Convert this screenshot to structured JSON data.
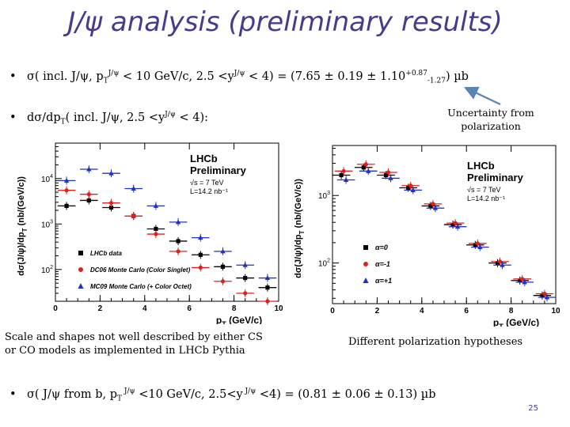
{
  "title": "J/ψ analysis (preliminary results)",
  "bullet1": {
    "main": "σ( incl. J/ψ, p",
    "sub_T": "T",
    "sup_jpsi": "J/ψ",
    "mid": " < 10 GeV/c, 2.5 <y",
    "sup_jpsi2": "J/ψ",
    "end": " < 4) = (7.65 ± 0.19 ± 1.10",
    "sup_err": "+0.87",
    "sub_err": "-1.27",
    "unit": ") µb"
  },
  "bullet2": {
    "main": "dσ/dp",
    "sub_T": "T",
    "mid": "( incl. J/ψ, 2.5 <y",
    "sup_jpsi": "J/ψ",
    "end": " < 4):"
  },
  "note_polarization": [
    "Uncertainty from",
    "polarization"
  ],
  "bullet3": {
    "main": "σ( J/ψ from b, p",
    "sub_T": "T",
    "sup1": " J/ψ",
    "mid": " <10 GeV/c, 2.5<y",
    "sup2": " J/ψ",
    "end": " <4) = (0.81 ± 0.06 ± 0.13) µb"
  },
  "caption_left": [
    "Scale and shapes not well described by either CS",
    "or CO models as implemented in LHCb Pythia"
  ],
  "caption_right": "Different polarization hypotheses",
  "page_number": "25",
  "colors": {
    "title": "#4b3a8c",
    "arrow": "#5a84b8",
    "red": "#e02020",
    "blue": "#2233bb"
  },
  "chart_data": [
    {
      "type": "scatter",
      "xlabel": "p_T (GeV/c)",
      "ylabel": "dσ(J/ψ)/dp_T (nb/(GeV/c))",
      "log_y": true,
      "xlim": [
        0,
        10
      ],
      "ylim": [
        20,
        60000
      ],
      "xticks": [
        "0",
        "2",
        "4",
        "6",
        "8",
        "10"
      ],
      "yticks": [
        {
          "v": 100,
          "label": "10^2"
        },
        {
          "v": 1000,
          "label": "10^3"
        },
        {
          "v": 10000,
          "label": "10^4"
        }
      ],
      "label_lines": [
        "LHCb",
        "Preliminary"
      ],
      "energy_label": "√s = 7 TeV",
      "lumi_label": "L=14.2 nb⁻¹",
      "series": [
        {
          "name": "LHCb data",
          "marker": "square",
          "color": "#000000",
          "x": [
            0.5,
            1.5,
            2.5,
            3.5,
            4.5,
            5.5,
            6.5,
            7.5,
            8.5,
            9.5
          ],
          "y": [
            2500,
            3300,
            2300,
            1500,
            780,
            420,
            210,
            115,
            65,
            40
          ]
        },
        {
          "name": "DC06 Monte Carlo (Color Singlet)",
          "marker": "circle",
          "color": "#e02020",
          "x": [
            0.5,
            1.5,
            2.5,
            3.5,
            4.5,
            5.5,
            6.5,
            7.5,
            8.5,
            9.5
          ],
          "y": [
            5500,
            4500,
            2900,
            1500,
            600,
            250,
            110,
            55,
            30,
            20
          ]
        },
        {
          "name": "MC09 Monte Carlo (+ Color Octet)",
          "marker": "triangle",
          "color": "#2233bb",
          "x": [
            0.5,
            1.5,
            2.5,
            3.5,
            4.5,
            5.5,
            6.5,
            7.5,
            8.5,
            9.5
          ],
          "y": [
            9000,
            16000,
            13000,
            6000,
            2500,
            1100,
            500,
            250,
            125,
            65
          ]
        }
      ]
    },
    {
      "type": "scatter",
      "xlabel": "p_T (GeV/c)",
      "ylabel": "dσ(J/ψ)/dp_T (nb/(GeV/c))",
      "log_y": true,
      "xlim": [
        0,
        10
      ],
      "ylim": [
        25,
        5500
      ],
      "xticks": [
        "0",
        "2",
        "4",
        "6",
        "8",
        "10"
      ],
      "yticks": [
        {
          "v": 100,
          "label": "10^2"
        },
        {
          "v": 1000,
          "label": "10^3"
        }
      ],
      "label_lines": [
        "LHCb",
        "Preliminary"
      ],
      "energy_label": "√s = 7 TeV",
      "lumi_label": "L=14.2 nb⁻¹",
      "series": [
        {
          "name": "α=0",
          "marker": "square",
          "color": "#000000",
          "x": [
            0.5,
            1.5,
            2.5,
            3.5,
            4.5,
            5.5,
            6.5,
            7.5,
            8.5,
            9.5
          ],
          "y": [
            2000,
            2600,
            2000,
            1300,
            700,
            370,
            185,
            100,
            55,
            33
          ]
        },
        {
          "name": "α=-1",
          "marker": "circle",
          "color": "#e02020",
          "x": [
            0.5,
            1.5,
            2.5,
            3.5,
            4.5,
            5.5,
            6.5,
            7.5,
            8.5,
            9.5
          ],
          "y": [
            2300,
            2900,
            2200,
            1400,
            750,
            390,
            195,
            105,
            58,
            35
          ]
        },
        {
          "name": "α=+1",
          "marker": "triangle",
          "color": "#2233bb",
          "x": [
            0.5,
            1.5,
            2.5,
            3.5,
            4.5,
            5.5,
            6.5,
            7.5,
            8.5,
            9.5
          ],
          "y": [
            1700,
            2300,
            1800,
            1200,
            650,
            345,
            172,
            93,
            52,
            31
          ]
        }
      ]
    }
  ]
}
